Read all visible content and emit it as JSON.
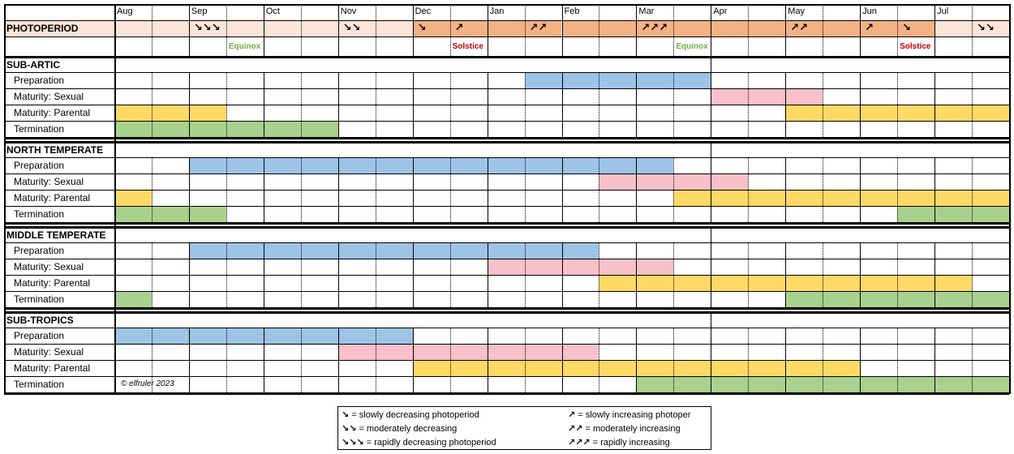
{
  "months": [
    "Aug",
    "Sep",
    "Oct",
    "Nov",
    "Dec",
    "Jan",
    "Feb",
    "Mar",
    "Apr",
    "May",
    "Jun",
    "Jul"
  ],
  "photoperiod": {
    "label": "PHOTOPERIOD",
    "colors": {
      "light": "#fce4d6",
      "dark": "#f4b183"
    },
    "arrows": [
      {
        "col": 2,
        "text": "↘↘↘"
      },
      {
        "col": 6,
        "text": "↘↘"
      },
      {
        "col": 8,
        "text": "↘"
      },
      {
        "col": 9,
        "text": "↗"
      },
      {
        "col": 11,
        "text": "↗↗"
      },
      {
        "col": 14,
        "text": "↗↗↗"
      },
      {
        "col": 18,
        "text": "↗↗"
      },
      {
        "col": 20,
        "text": "↗"
      },
      {
        "col": 21,
        "text": "↘"
      },
      {
        "col": 23,
        "text": "↘↘"
      }
    ],
    "events": [
      {
        "col": 3,
        "text": "Equinox",
        "color": "#70ad47"
      },
      {
        "col": 9,
        "text": "Solstice",
        "color": "#c00000"
      },
      {
        "col": 15,
        "text": "Equinox",
        "color": "#70ad47"
      },
      {
        "col": 21,
        "text": "Solstice",
        "color": "#c00000"
      }
    ]
  },
  "stage_colors": {
    "preparation": "#9dc3e6",
    "sexual": "#f8c0c8",
    "parental": "#ffd966",
    "termination": "#a9d18e"
  },
  "regions": [
    {
      "name": "SUB-ARTIC",
      "rows": [
        {
          "label": "Preparation",
          "stage": "preparation",
          "ranges": [
            [
              11,
              16
            ]
          ]
        },
        {
          "label": "Maturity: Sexual",
          "stage": "sexual",
          "ranges": [
            [
              16,
              19
            ]
          ]
        },
        {
          "label": "Maturity: Parental",
          "stage": "parental",
          "ranges": [
            [
              0,
              3
            ],
            [
              18,
              24
            ]
          ]
        },
        {
          "label": "Termination",
          "stage": "termination",
          "ranges": [
            [
              0,
              6
            ]
          ]
        }
      ]
    },
    {
      "name": "NORTH TEMPERATE",
      "rows": [
        {
          "label": "Preparation",
          "stage": "preparation",
          "ranges": [
            [
              2,
              15
            ]
          ]
        },
        {
          "label": "Maturity: Sexual",
          "stage": "sexual",
          "ranges": [
            [
              13,
              17
            ]
          ]
        },
        {
          "label": "Maturity: Parental",
          "stage": "parental",
          "ranges": [
            [
              0,
              1
            ],
            [
              15,
              24
            ]
          ]
        },
        {
          "label": "Termination",
          "stage": "termination",
          "ranges": [
            [
              0,
              3
            ],
            [
              21,
              24
            ]
          ]
        }
      ]
    },
    {
      "name": "MIDDLE TEMPERATE",
      "rows": [
        {
          "label": "Preparation",
          "stage": "preparation",
          "ranges": [
            [
              2,
              13
            ]
          ]
        },
        {
          "label": "Maturity: Sexual",
          "stage": "sexual",
          "ranges": [
            [
              10,
              15
            ]
          ]
        },
        {
          "label": "Maturity: Parental",
          "stage": "parental",
          "ranges": [
            [
              13,
              23
            ]
          ]
        },
        {
          "label": "Termination",
          "stage": "termination",
          "ranges": [
            [
              0,
              1
            ],
            [
              18,
              24
            ]
          ]
        }
      ]
    },
    {
      "name": "SUB-TROPICS",
      "rows": [
        {
          "label": "Preparation",
          "stage": "preparation",
          "ranges": [
            [
              0,
              8
            ]
          ]
        },
        {
          "label": "Maturity: Sexual",
          "stage": "sexual",
          "ranges": [
            [
              6,
              13
            ]
          ]
        },
        {
          "label": "Maturity: Parental",
          "stage": "parental",
          "ranges": [
            [
              8,
              20
            ]
          ]
        },
        {
          "label": "Termination",
          "stage": "termination",
          "ranges": [
            [
              14,
              24
            ]
          ]
        }
      ]
    }
  ],
  "copyright": "© elfruler 2023",
  "legend": [
    {
      "symbol": "↘",
      "text": " = slowly decreasing photoperiod"
    },
    {
      "symbol": "↘↘",
      "text": " = moderately decreasing"
    },
    {
      "symbol": "↘↘↘",
      "text": " = rapidly decreasing photoperiod"
    },
    {
      "symbol": "↗",
      "text": " = slowly increasing photoper"
    },
    {
      "symbol": "↗↗",
      "text": " = moderately increasing"
    },
    {
      "symbol": "↗↗↗",
      "text": " = rapidly increasing"
    }
  ]
}
